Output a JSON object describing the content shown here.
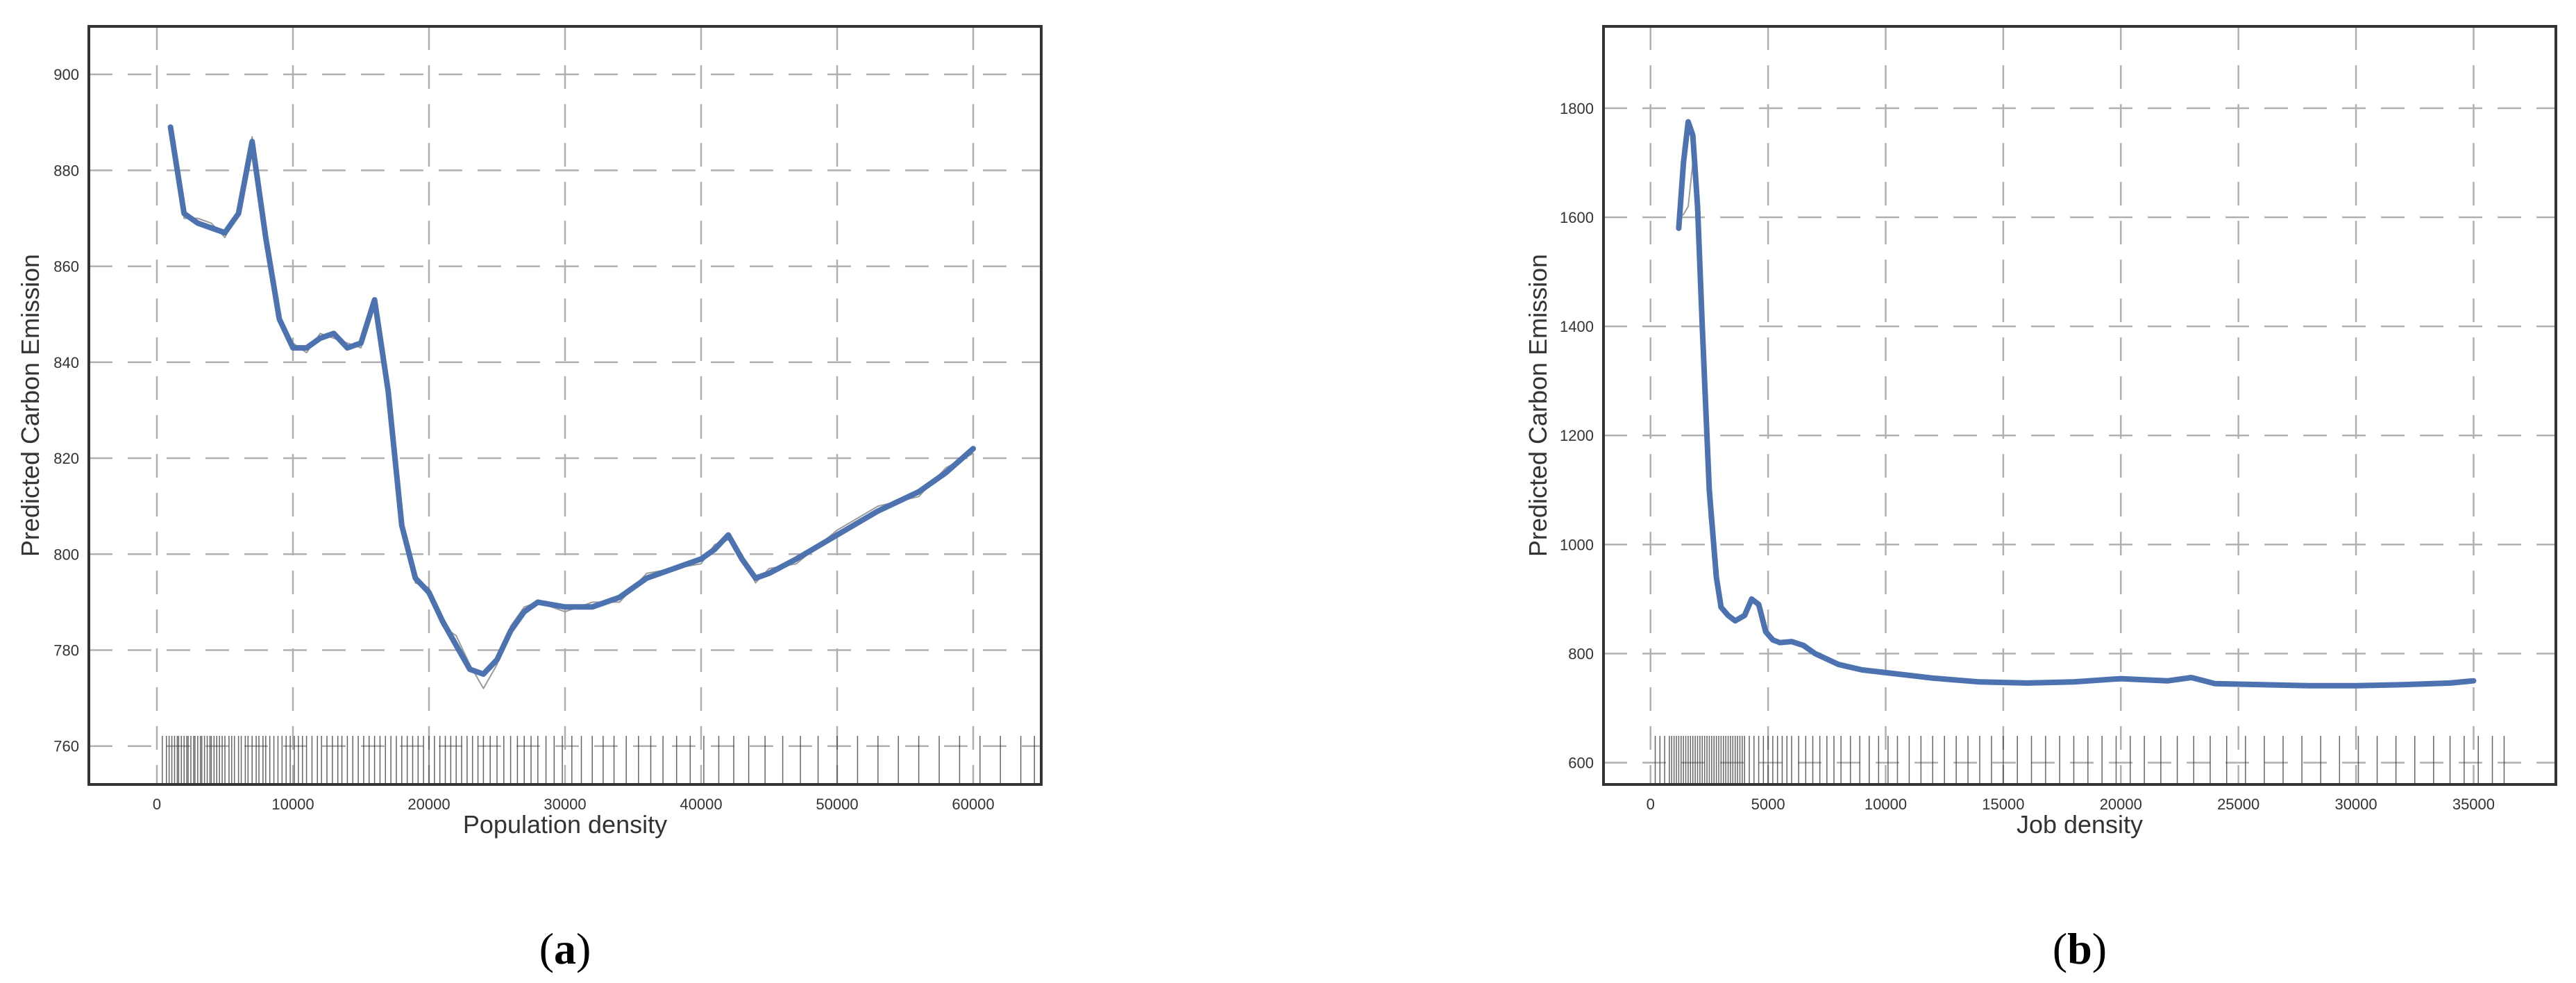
{
  "chart_data": [
    {
      "type": "line",
      "caption_letter": "a",
      "xlabel": "Population density",
      "ylabel": "Predicted Carbon Emission",
      "xlim": [
        -5000,
        65000
      ],
      "ylim": [
        752,
        910
      ],
      "xticks": [
        0,
        10000,
        20000,
        30000,
        40000,
        50000,
        60000
      ],
      "yticks": [
        760,
        780,
        800,
        820,
        840,
        860,
        880,
        900
      ],
      "grid": true,
      "colors": {
        "smooth": "#4c72b0",
        "raw": "#9a9a9a",
        "rug": "#333333",
        "grid": "#b0b0b0"
      },
      "series": [
        {
          "style": "smooth",
          "x": [
            1000,
            2000,
            3000,
            4000,
            5000,
            6000,
            7000,
            8000,
            9000,
            10000,
            11000,
            12000,
            13000,
            14000,
            15000,
            16000,
            17000,
            18000,
            19000,
            20000,
            21000,
            22000,
            23000,
            24000,
            25000,
            26000,
            27000,
            28000,
            30000,
            32000,
            34000,
            36000,
            38000,
            40000,
            41000,
            42000,
            43000,
            44000,
            45000,
            47000,
            50000,
            53000,
            56000,
            58000,
            60000
          ],
          "y": [
            889,
            871,
            869,
            868,
            867,
            871,
            886,
            866,
            849,
            843,
            843,
            845,
            846,
            843,
            844,
            853,
            834,
            806,
            795,
            792,
            786,
            781,
            776,
            775,
            778,
            784,
            788,
            790,
            789,
            789,
            791,
            795,
            797,
            799,
            801,
            804,
            799,
            795,
            796,
            799,
            804,
            809,
            813,
            817,
            822
          ]
        },
        {
          "style": "raw",
          "x": [
            1000,
            2000,
            3000,
            4000,
            5000,
            6000,
            7000,
            8000,
            9000,
            10000,
            11000,
            12000,
            13000,
            14000,
            15000,
            16000,
            17000,
            18000,
            19000,
            20000,
            21000,
            22000,
            23000,
            24000,
            25000,
            26000,
            27000,
            28000,
            30000,
            32000,
            34000,
            36000,
            38000,
            40000,
            41000,
            42000,
            43000,
            44000,
            45000,
            47000,
            50000,
            53000,
            56000,
            58000,
            60000
          ],
          "y": [
            888,
            870,
            870,
            869,
            866,
            872,
            887,
            865,
            848,
            844,
            842,
            846,
            845,
            844,
            843,
            852,
            835,
            805,
            794,
            793,
            785,
            783,
            777,
            772,
            777,
            785,
            789,
            790,
            788,
            790,
            790,
            796,
            797,
            798,
            802,
            803,
            800,
            794,
            797,
            798,
            805,
            810,
            812,
            818,
            821
          ]
        }
      ],
      "rug": [
        400,
        700,
        900,
        1100,
        1300,
        1500,
        1600,
        1800,
        2000,
        2200,
        2300,
        2500,
        2700,
        2800,
        3000,
        3200,
        3300,
        3500,
        3700,
        3900,
        4000,
        4200,
        4400,
        4600,
        4800,
        5000,
        5300,
        5500,
        5700,
        6000,
        6200,
        6500,
        6700,
        7000,
        7300,
        7500,
        7800,
        8000,
        8300,
        8600,
        8900,
        9200,
        9500,
        9800,
        10100,
        10400,
        10700,
        11000,
        11400,
        11800,
        12100,
        12500,
        12900,
        13300,
        13600,
        14000,
        14400,
        14800,
        15200,
        15600,
        16000,
        16400,
        16800,
        17200,
        17600,
        18000,
        18400,
        18800,
        19200,
        19600,
        20000,
        20400,
        20800,
        21200,
        21600,
        22000,
        22400,
        22800,
        23200,
        23600,
        24000,
        24500,
        25000,
        25500,
        26000,
        26500,
        27000,
        27500,
        28000,
        28600,
        29200,
        29800,
        30500,
        31200,
        32000,
        32800,
        33600,
        34500,
        35400,
        36300,
        37200,
        38200,
        39200,
        40200,
        41300,
        42400,
        43500,
        44700,
        46000,
        47300,
        48600,
        50000,
        51500,
        53000,
        54500,
        56000,
        57500,
        59000,
        60500,
        62000,
        63500,
        64500
      ]
    },
    {
      "type": "line",
      "caption_letter": "b",
      "xlabel": "Job density",
      "ylabel": "Predicted Carbon Emission",
      "xlim": [
        -2000,
        38500
      ],
      "ylim": [
        560,
        1950
      ],
      "xticks": [
        0,
        5000,
        10000,
        15000,
        20000,
        25000,
        30000,
        35000
      ],
      "yticks": [
        600,
        800,
        1000,
        1200,
        1400,
        1600,
        1800
      ],
      "grid": true,
      "colors": {
        "smooth": "#4c72b0",
        "raw": "#9a9a9a",
        "rug": "#333333",
        "grid": "#b0b0b0"
      },
      "series": [
        {
          "style": "smooth",
          "x": [
            1200,
            1400,
            1600,
            1800,
            2000,
            2200,
            2500,
            2800,
            3000,
            3300,
            3600,
            4000,
            4300,
            4600,
            4900,
            5200,
            5500,
            6000,
            6500,
            7000,
            8000,
            9000,
            10000,
            12000,
            14000,
            16000,
            18000,
            20000,
            21000,
            22000,
            23000,
            24000,
            26000,
            28000,
            30000,
            32000,
            34000,
            35000
          ],
          "y": [
            1580,
            1700,
            1775,
            1750,
            1620,
            1400,
            1100,
            940,
            885,
            870,
            860,
            870,
            900,
            890,
            840,
            825,
            820,
            822,
            815,
            800,
            780,
            770,
            765,
            755,
            748,
            746,
            748,
            754,
            752,
            750,
            756,
            745,
            743,
            741,
            741,
            743,
            746,
            750
          ]
        },
        {
          "style": "raw",
          "x": [
            1200,
            1400,
            1600,
            1800,
            2000,
            2200,
            2500,
            2800,
            3000,
            3300,
            3600,
            4000,
            4300,
            4600,
            4900,
            5200,
            5500,
            6000
          ],
          "y": [
            1600,
            1605,
            1620,
            1700,
            1560,
            1350,
            1050,
            920,
            880,
            872,
            862,
            868,
            896,
            892,
            842,
            826,
            821,
            821
          ]
        }
      ],
      "rug": [
        200,
        400,
        600,
        800,
        900,
        1000,
        1100,
        1200,
        1300,
        1400,
        1500,
        1600,
        1700,
        1800,
        1900,
        2000,
        2100,
        2200,
        2300,
        2400,
        2500,
        2600,
        2700,
        2800,
        2900,
        3000,
        3100,
        3200,
        3300,
        3400,
        3500,
        3600,
        3700,
        3800,
        3900,
        4000,
        4200,
        4400,
        4600,
        4800,
        5000,
        5200,
        5400,
        5600,
        5800,
        6000,
        6300,
        6600,
        6900,
        7200,
        7500,
        7800,
        8100,
        8500,
        8900,
        9300,
        9700,
        10100,
        10500,
        11000,
        11500,
        12000,
        12500,
        13000,
        13500,
        14000,
        14500,
        15000,
        15600,
        16200,
        16800,
        17400,
        18000,
        18600,
        19200,
        19800,
        20400,
        21000,
        21700,
        22400,
        23100,
        23800,
        24500,
        25300,
        26100,
        26900,
        27700,
        28500,
        29300,
        30100,
        30900,
        31700,
        32500,
        33300,
        34000,
        34600,
        35200,
        35800,
        36300
      ]
    }
  ]
}
